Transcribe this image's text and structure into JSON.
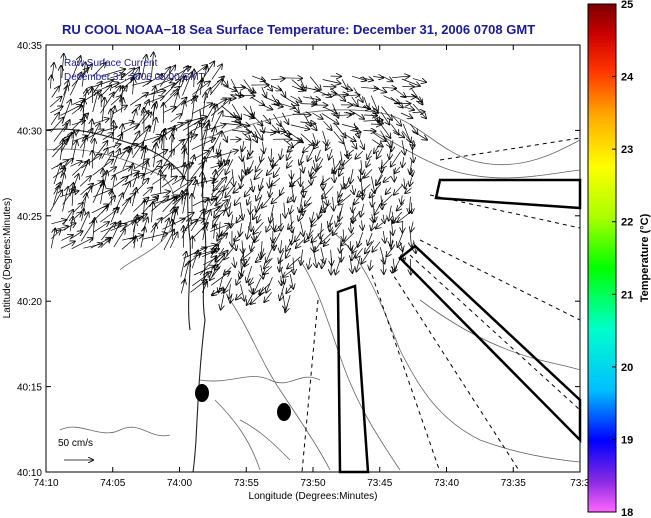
{
  "title": "RU COOL  NOAA−18  Sea Surface Temperature:  December 31, 2006 0708 GMT",
  "overlay": {
    "line1": "Raw Surface Current",
    "line2": "December 31, 2006 05:00 GMT",
    "scale_label": "50 cm/s"
  },
  "axes": {
    "xlabel": "Longitude (Degrees:Minutes)",
    "ylabel": "Latitude (Degrees:Minutes)",
    "xticks": [
      "74:10",
      "74:05",
      "74:00",
      "73:55",
      "73:50",
      "73:45",
      "73:40",
      "73:35",
      "73:3"
    ],
    "yticks": [
      "40:35",
      "40:30",
      "40:25",
      "40:20",
      "40:15",
      "40:10"
    ]
  },
  "colorbar": {
    "label": "Temperature (°C)",
    "ticks": [
      "25",
      "24",
      "23",
      "22",
      "21",
      "20",
      "19",
      "18"
    ],
    "min": 18,
    "max": 25,
    "colors": [
      "#ff66ff",
      "#8a2be2",
      "#0000ff",
      "#00bfff",
      "#00ffcc",
      "#00ff00",
      "#aaff00",
      "#ffff00",
      "#ffaa00",
      "#ff3300",
      "#cc0000",
      "#7a0000"
    ]
  }
}
